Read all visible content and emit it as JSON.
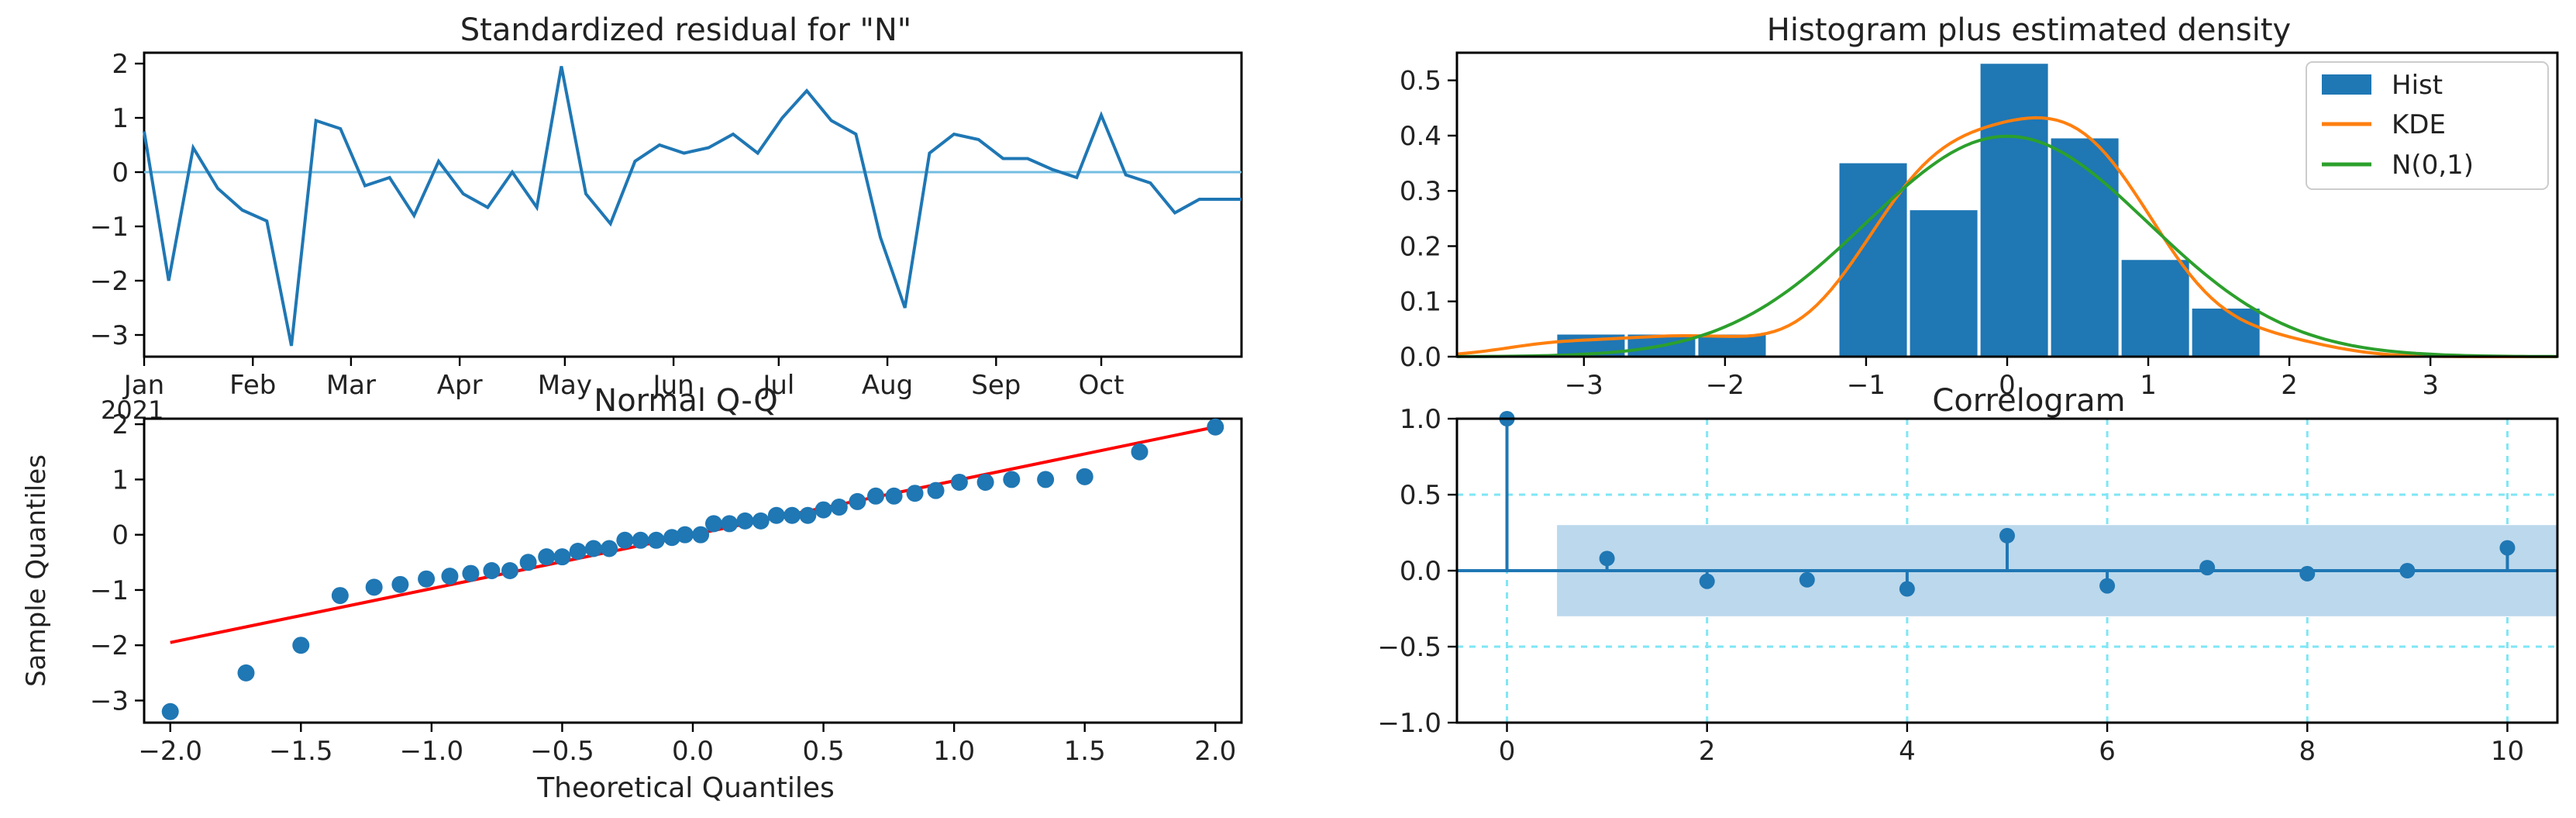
{
  "colors": {
    "primary": "#1f77b4",
    "kde": "#ff7f0e",
    "normal": "#2ca02c",
    "qq_line": "#ff0000",
    "zero_line": "#73bde0",
    "conf_band": "#bcd8ec",
    "grid": "#7fe6f5"
  },
  "chart_data": [
    {
      "type": "line",
      "title": "Standardized residual for \"N\"",
      "x_ticks": [
        "Jan",
        "Feb",
        "Mar",
        "Apr",
        "May",
        "Jun",
        "Jul",
        "Aug",
        "Sep",
        "Oct"
      ],
      "x_offset_label": "2021",
      "y_ticks": [
        "2",
        "1",
        "0",
        "−1",
        "−2",
        "−3"
      ],
      "ylim": [
        -3.4,
        2.2
      ],
      "x_range": [
        "2021-01-01",
        "2021-11-10"
      ],
      "zero_line": 0,
      "series": [
        {
          "x": [
            "2021-01-01",
            "2021-01-08",
            "2021-01-15",
            "2021-01-22",
            "2021-01-29",
            "2021-02-05",
            "2021-02-12",
            "2021-02-19",
            "2021-02-26",
            "2021-03-05",
            "2021-03-12",
            "2021-03-19",
            "2021-03-26",
            "2021-04-02",
            "2021-04-09",
            "2021-04-16",
            "2021-04-23",
            "2021-04-30",
            "2021-05-07",
            "2021-05-14",
            "2021-05-21",
            "2021-05-28",
            "2021-06-04",
            "2021-06-11",
            "2021-06-18",
            "2021-06-25",
            "2021-07-02",
            "2021-07-09",
            "2021-07-16",
            "2021-07-23",
            "2021-07-30",
            "2021-08-06",
            "2021-08-13",
            "2021-08-20",
            "2021-08-27",
            "2021-09-03",
            "2021-09-10",
            "2021-09-17",
            "2021-09-24",
            "2021-10-01",
            "2021-10-08",
            "2021-10-15",
            "2021-10-22",
            "2021-10-29",
            "2021-11-05",
            "2021-11-10"
          ],
          "values": [
            0.75,
            -2.0,
            0.45,
            -0.3,
            -0.7,
            -0.9,
            -3.2,
            0.95,
            0.8,
            -0.25,
            -0.1,
            -0.8,
            0.2,
            -0.4,
            -0.65,
            0.0,
            -0.65,
            1.95,
            -0.4,
            -0.95,
            0.2,
            0.5,
            0.35,
            0.45,
            0.7,
            0.35,
            1.0,
            1.5,
            0.95,
            0.7,
            -1.2,
            -2.5,
            0.35,
            0.7,
            0.6,
            0.25,
            0.25,
            0.05,
            -0.1,
            1.05,
            -0.05,
            -0.2,
            -0.75,
            -0.5,
            -0.5,
            -0.5
          ]
        }
      ]
    },
    {
      "type": "bar",
      "title": "Histogram plus estimated density",
      "x_ticks": [
        "−3",
        "−2",
        "−1",
        "0",
        "1",
        "2",
        "3"
      ],
      "y_ticks": [
        "0.5",
        "0.4",
        "0.3",
        "0.2",
        "0.1",
        "0.0"
      ],
      "xlim": [
        -3.9,
        3.9
      ],
      "ylim": [
        0,
        0.55
      ],
      "legend": [
        "Hist",
        "KDE",
        "N(0,1)"
      ],
      "legend_position": "top-right",
      "bins": [
        {
          "x0": -3.2,
          "x1": -2.7,
          "height": 0.04
        },
        {
          "x0": -2.7,
          "x1": -2.2,
          "height": 0.04
        },
        {
          "x0": -2.2,
          "x1": -1.7,
          "height": 0.04
        },
        {
          "x0": -1.2,
          "x1": -0.7,
          "height": 0.35
        },
        {
          "x0": -0.7,
          "x1": -0.2,
          "height": 0.265
        },
        {
          "x0": -0.2,
          "x1": 0.3,
          "height": 0.53
        },
        {
          "x0": 0.3,
          "x1": 0.8,
          "height": 0.395
        },
        {
          "x0": 0.8,
          "x1": 1.3,
          "height": 0.175
        },
        {
          "x0": 1.3,
          "x1": 1.8,
          "height": 0.087
        }
      ]
    },
    {
      "type": "scatter",
      "title": "Normal Q-Q",
      "xlabel": "Theoretical Quantiles",
      "ylabel": "Sample Quantiles",
      "x_ticks": [
        "−2.0",
        "−1.5",
        "−1.0",
        "−0.5",
        "0.0",
        "0.5",
        "1.0",
        "1.5",
        "2.0"
      ],
      "y_ticks": [
        "2",
        "1",
        "0",
        "−1",
        "−2",
        "−3"
      ],
      "xlim": [
        -2.1,
        2.1
      ],
      "ylim": [
        -3.4,
        2.1
      ],
      "reference_line": [
        [
          -2.0,
          -1.95
        ],
        [
          2.0,
          1.95
        ]
      ],
      "points": [
        [
          -2.0,
          -3.2
        ],
        [
          -1.71,
          -2.5
        ],
        [
          -1.5,
          -2.0
        ],
        [
          -1.35,
          -1.1
        ],
        [
          -1.22,
          -0.95
        ],
        [
          -1.12,
          -0.9
        ],
        [
          -1.02,
          -0.8
        ],
        [
          -0.93,
          -0.75
        ],
        [
          -0.85,
          -0.7
        ],
        [
          -0.77,
          -0.65
        ],
        [
          -0.7,
          -0.65
        ],
        [
          -0.63,
          -0.5
        ],
        [
          -0.56,
          -0.4
        ],
        [
          -0.5,
          -0.4
        ],
        [
          -0.44,
          -0.3
        ],
        [
          -0.38,
          -0.25
        ],
        [
          -0.32,
          -0.25
        ],
        [
          -0.26,
          -0.1
        ],
        [
          -0.2,
          -0.1
        ],
        [
          -0.14,
          -0.1
        ],
        [
          -0.08,
          -0.05
        ],
        [
          -0.03,
          0.0
        ],
        [
          0.03,
          0.0
        ],
        [
          0.08,
          0.2
        ],
        [
          0.14,
          0.2
        ],
        [
          0.2,
          0.25
        ],
        [
          0.26,
          0.25
        ],
        [
          0.32,
          0.35
        ],
        [
          0.38,
          0.35
        ],
        [
          0.44,
          0.35
        ],
        [
          0.5,
          0.45
        ],
        [
          0.56,
          0.5
        ],
        [
          0.63,
          0.6
        ],
        [
          0.7,
          0.7
        ],
        [
          0.77,
          0.7
        ],
        [
          0.85,
          0.75
        ],
        [
          0.93,
          0.8
        ],
        [
          1.02,
          0.95
        ],
        [
          1.12,
          0.95
        ],
        [
          1.22,
          1.0
        ],
        [
          1.35,
          1.0
        ],
        [
          1.5,
          1.05
        ],
        [
          1.71,
          1.5
        ],
        [
          2.0,
          1.95
        ]
      ]
    },
    {
      "type": "bar",
      "title": "Correlogram",
      "x_ticks": [
        "0",
        "2",
        "4",
        "6",
        "8",
        "10"
      ],
      "y_ticks": [
        "1.0",
        "0.5",
        "0.0",
        "−0.5",
        "−1.0"
      ],
      "xlim": [
        -0.5,
        10.5
      ],
      "ylim": [
        -1.0,
        1.0
      ],
      "grid": true,
      "confidence_band": [
        -0.3,
        0.3
      ],
      "lags": [
        0,
        1,
        2,
        3,
        4,
        5,
        6,
        7,
        8,
        9,
        10
      ],
      "values": [
        1.0,
        0.08,
        -0.07,
        -0.06,
        -0.12,
        0.23,
        -0.1,
        0.02,
        -0.02,
        0.0,
        0.15
      ]
    }
  ]
}
